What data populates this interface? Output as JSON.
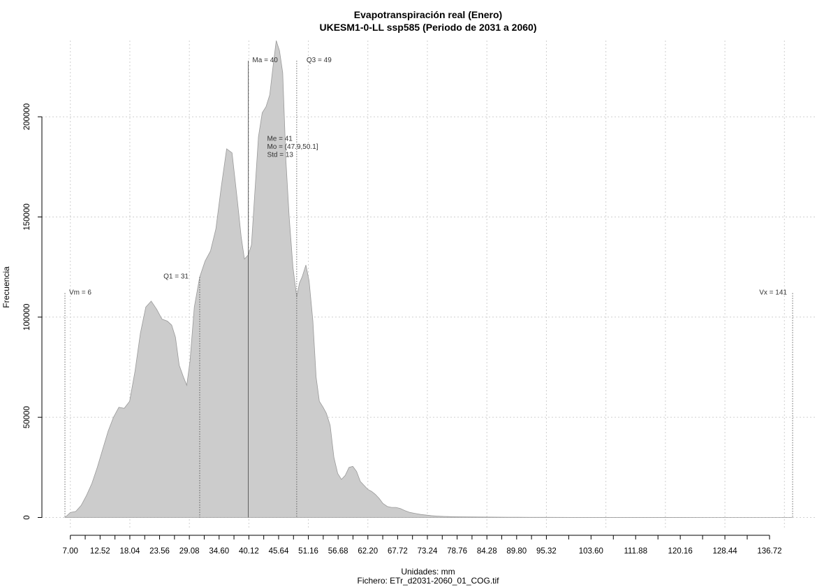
{
  "chart_data": {
    "type": "area",
    "title": "Evapotranspiración real (Enero)",
    "subtitle": "UKESM1-0-LL ssp585 (Periodo de 2031 a 2060)",
    "xlabel": "Unidades: mm",
    "ylabel": "Frecuencia",
    "caption": "Fichero: ETr_d2031-2060_01_COG.tif",
    "xlim": [
      6,
      141
    ],
    "ylim": [
      0,
      240000
    ],
    "grid": true,
    "fill_color": "#cccccc",
    "line_color": "#999999",
    "x_ticks": [
      "7.00",
      "12.52",
      "18.04",
      "23.56",
      "29.08",
      "34.60",
      "40.12",
      "45.64",
      "51.16",
      "56.68",
      "62.20",
      "67.72",
      "73.24",
      "78.76",
      "84.28",
      "89.80",
      "95.32",
      "103.60",
      "111.88",
      "120.16",
      "128.44",
      "136.72"
    ],
    "x_tick_values": [
      7.0,
      12.52,
      18.04,
      23.56,
      29.08,
      34.6,
      40.12,
      45.64,
      51.16,
      56.68,
      62.2,
      67.72,
      73.24,
      78.76,
      84.28,
      89.8,
      95.32,
      103.6,
      111.88,
      120.16,
      128.44,
      136.72
    ],
    "y_ticks": [
      "0",
      "50000",
      "100000",
      "150000",
      "200000"
    ],
    "y_tick_values": [
      0,
      50000,
      100000,
      150000,
      200000
    ],
    "x_grid_values": [
      7.0,
      18.04,
      29.08,
      40.12,
      51.16,
      62.2,
      73.24,
      84.28,
      95.32,
      106.36,
      117.4,
      128.44,
      139.48
    ],
    "series": [
      {
        "x": [
          6.0,
          7.0,
          8.0,
          9.0,
          10.0,
          11.0,
          12.0,
          13.0,
          14.0,
          15.0,
          16.0,
          17.0,
          18.0,
          19.0,
          20.0,
          21.0,
          22.0,
          23.0,
          24.0,
          25.0,
          25.8,
          26.5,
          27.2,
          28.0,
          28.6,
          29.2,
          30.0,
          31.0,
          32.0,
          33.0,
          34.0,
          35.0,
          36.0,
          37.0,
          38.0,
          38.7,
          39.3,
          40.0,
          40.6,
          41.2,
          41.9,
          42.6,
          43.3,
          44.0,
          44.6,
          45.2,
          45.8,
          46.4,
          47.0,
          47.6,
          48.3,
          49.0,
          49.5,
          50.0,
          50.7,
          51.3,
          52.0,
          52.6,
          53.2,
          53.9,
          54.5,
          55.2,
          55.9,
          56.6,
          57.3,
          58.0,
          58.7,
          59.4,
          60.1,
          60.8,
          61.5,
          62.2,
          62.9,
          63.6,
          64.3,
          65.0,
          65.8,
          66.6,
          67.4,
          68.2,
          69.0,
          70.0,
          71.0,
          72.0,
          73.0,
          74.0,
          75.0,
          76.0,
          77.0,
          78.0,
          79.0,
          80.0,
          82.0,
          84.0,
          86.0,
          88.0,
          90.0,
          92.0,
          95.0,
          100.0,
          110.0,
          120.0,
          130.0,
          141.0
        ],
        "y": [
          0,
          2500,
          3000,
          6000,
          11000,
          17000,
          25000,
          34000,
          43000,
          50000,
          55000,
          54500,
          58000,
          73000,
          92000,
          105000,
          108000,
          104000,
          99000,
          98000,
          96000,
          90000,
          76000,
          70000,
          66000,
          78000,
          105000,
          120000,
          128000,
          133000,
          144000,
          165000,
          184000,
          182000,
          158000,
          140000,
          129000,
          131000,
          136000,
          161000,
          190000,
          202000,
          205000,
          211000,
          225000,
          238000,
          233000,
          222000,
          178000,
          150000,
          125000,
          110000,
          117000,
          120000,
          126000,
          118000,
          98000,
          70000,
          58000,
          55000,
          52000,
          46000,
          30000,
          22000,
          19000,
          21000,
          25000,
          25500,
          23000,
          18000,
          16000,
          14000,
          13000,
          11500,
          9500,
          7000,
          5500,
          5000,
          5000,
          4500,
          3500,
          2500,
          2000,
          1500,
          1200,
          900,
          700,
          550,
          450,
          400,
          350,
          300,
          250,
          200,
          150,
          120,
          100,
          80,
          60,
          40,
          25,
          15,
          5,
          0
        ]
      }
    ],
    "annotations": [
      {
        "label": "Vm = 6",
        "x": 6,
        "y": 112000,
        "style": "dotted"
      },
      {
        "label": "Q1 = 31",
        "x": 31,
        "y": 120000,
        "style": "dotted"
      },
      {
        "label": "Ma = 40",
        "x": 40,
        "y": 228000,
        "style": "solid"
      },
      {
        "label": "Q3 = 49",
        "x": 49,
        "y": 228000,
        "style": "dotted"
      },
      {
        "label": "Vx = 141",
        "x": 141,
        "y": 112000,
        "style": "dotted"
      }
    ],
    "stats_box": [
      "Me = 41",
      "Mo = (47.9,50.1]",
      "Std = 13"
    ],
    "stats_box_pos": [
      43.5,
      188000
    ]
  }
}
